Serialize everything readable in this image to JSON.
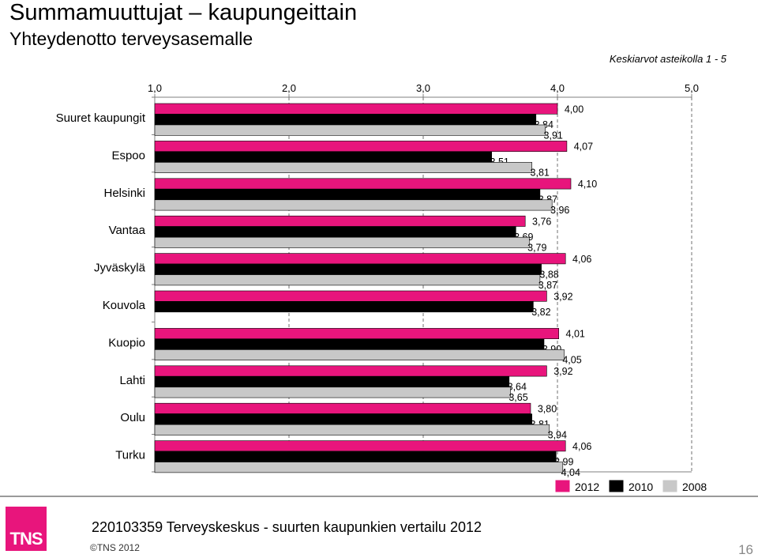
{
  "header": {
    "title": "Summamuuttujat – kaupungeittain",
    "subtitle": "Yhteydenotto terveysasemalle",
    "note": "Keskiarvot asteikolla 1 - 5"
  },
  "footer": {
    "logo_text": "TNS",
    "text": "220103359 Terveyskeskus - suurten kaupunkien vertailu 2012",
    "copyright": "©TNS 2012",
    "page_number": "16"
  },
  "colors": {
    "2012": "#e8157c",
    "2010": "#000000",
    "2008": "#c8c8c8"
  },
  "chart_data": {
    "type": "bar",
    "orientation": "horizontal",
    "xlim": [
      1.0,
      5.0
    ],
    "x_ticks": [
      "1,0",
      "2,0",
      "3,0",
      "4,0",
      "5,0"
    ],
    "legend_position": "bottom-right",
    "categories": [
      "Suuret kaupungit",
      "Espoo",
      "Helsinki",
      "Vantaa",
      "Jyväskylä",
      "Kouvola",
      "Kuopio",
      "Lahti",
      "Oulu",
      "Turku"
    ],
    "series": [
      {
        "name": "2012",
        "values": [
          4.0,
          4.07,
          4.1,
          3.76,
          4.06,
          3.92,
          4.01,
          3.92,
          3.8,
          4.06
        ],
        "labels": [
          "4,00",
          "4,07",
          "4,10",
          "3,76",
          "4,06",
          "3,92",
          "4,01",
          "3,92",
          "3,80",
          "4,06"
        ]
      },
      {
        "name": "2010",
        "values": [
          3.84,
          3.51,
          3.87,
          3.69,
          3.88,
          3.82,
          3.9,
          3.64,
          3.81,
          3.99
        ],
        "labels": [
          "3,84",
          "3,51",
          "3,87",
          "3,69",
          "3,88",
          "3,82",
          "3,90",
          "3,64",
          "3,81",
          "3,99"
        ]
      },
      {
        "name": "2008",
        "values": [
          3.91,
          3.81,
          3.96,
          3.79,
          3.87,
          null,
          4.05,
          3.65,
          3.94,
          4.04
        ],
        "labels": [
          "3,91",
          "3,81",
          "3,96",
          "3,79",
          "3,87",
          null,
          "4,05",
          "3,65",
          "3,94",
          "4,04"
        ]
      }
    ]
  }
}
